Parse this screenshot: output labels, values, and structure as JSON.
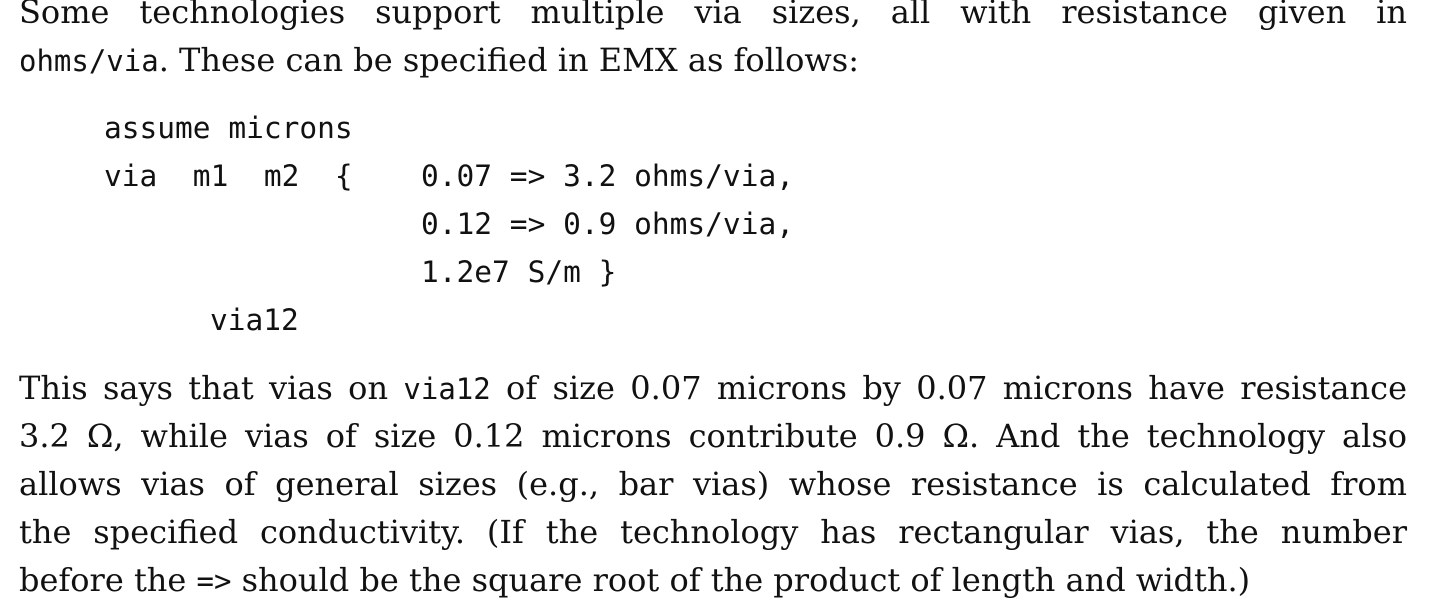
{
  "intro": {
    "line1": "Some technologies support multiple via sizes, all with resistance given in",
    "line2_code": "ohms/via",
    "line2_text": ". These can be specified in EMX as follows:"
  },
  "code": {
    "line1": "assume microns",
    "line2_prefix": "via  m1  m2  {",
    "line2_value": "0.07 => 3.2 ohms/via,",
    "line3": "0.12 => 0.9 ohms/via,",
    "line4": "1.2e7 S/m }",
    "line5": "via12"
  },
  "paragraph": {
    "line1_a": "This says that vias on ",
    "line1_code": "via12",
    "line1_b": " of size 0.07 microns by 0.07 microns have resistance",
    "line2": "3.2 Ω, while vias of size 0.12 microns contribute 0.9 Ω. And the technology also",
    "line3": "allows vias of general sizes (e.g., bar vias) whose resistance is calculated from",
    "line4": "the specified conductivity. (If the technology has rectangular vias, the number",
    "line5_a": "before the ",
    "line5_code": "=>",
    "line5_b": " should be the square root of the product of length and width.)"
  }
}
